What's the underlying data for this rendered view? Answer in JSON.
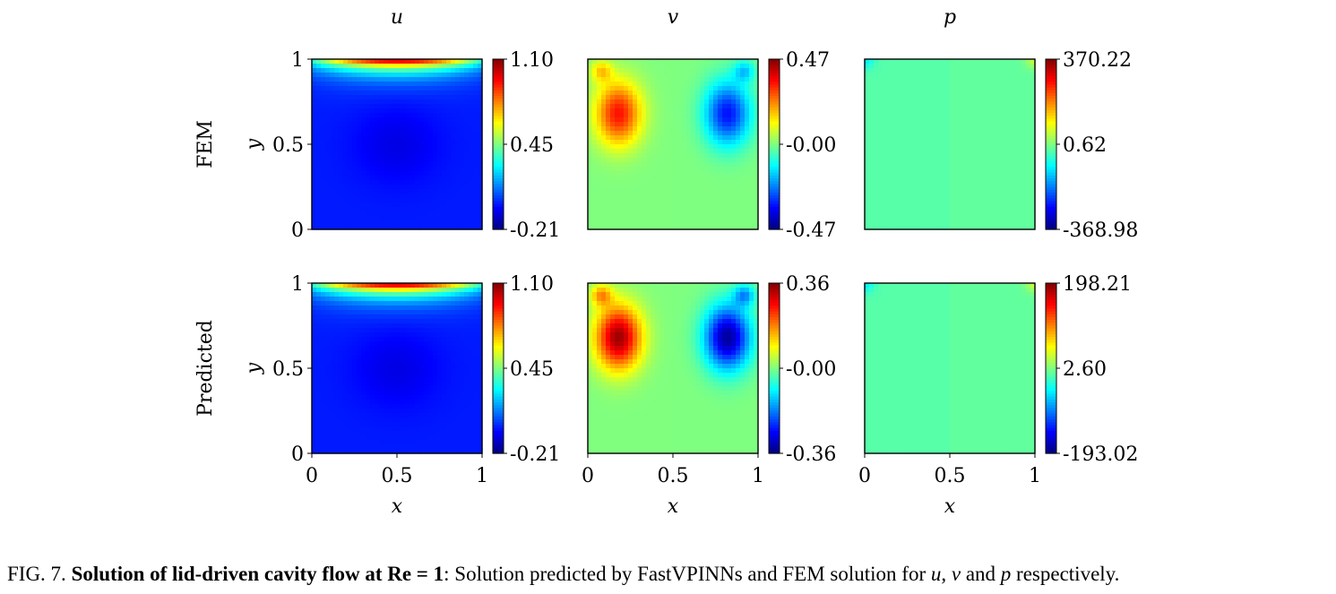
{
  "columns": [
    "u",
    "v",
    "p"
  ],
  "row_labels": [
    "FEM",
    "Predicted"
  ],
  "chart_data": [
    {
      "type": "heatmap",
      "title": "u",
      "row": "FEM",
      "field": "u",
      "xlabel": "",
      "ylabel": "y",
      "xlim": [
        0,
        1
      ],
      "ylim": [
        0,
        1
      ],
      "xticks": [],
      "yticks": [
        "0",
        "0.5",
        "1"
      ],
      "colorbar": {
        "min": -0.21,
        "max": 1.1,
        "ticks": [
          "1.10",
          "0.45",
          "-0.21"
        ]
      }
    },
    {
      "type": "heatmap",
      "title": "v",
      "row": "FEM",
      "field": "v",
      "xlabel": "",
      "ylabel": "",
      "xlim": [
        0,
        1
      ],
      "ylim": [
        0,
        1
      ],
      "xticks": [],
      "yticks": [],
      "colorbar": {
        "min": -0.47,
        "max": 0.47,
        "ticks": [
          "0.47",
          "-0.00",
          "-0.47"
        ]
      }
    },
    {
      "type": "heatmap",
      "title": "p",
      "row": "FEM",
      "field": "p",
      "xlabel": "",
      "ylabel": "",
      "xlim": [
        0,
        1
      ],
      "ylim": [
        0,
        1
      ],
      "xticks": [],
      "yticks": [],
      "colorbar": {
        "min": -368.98,
        "max": 370.22,
        "ticks": [
          "370.22",
          "0.62",
          "-368.98"
        ]
      }
    },
    {
      "type": "heatmap",
      "title": "",
      "row": "Predicted",
      "field": "u",
      "xlabel": "x",
      "ylabel": "y",
      "xlim": [
        0,
        1
      ],
      "ylim": [
        0,
        1
      ],
      "xticks": [
        "0",
        "0.5",
        "1"
      ],
      "yticks": [
        "0",
        "0.5",
        "1"
      ],
      "colorbar": {
        "min": -0.21,
        "max": 1.1,
        "ticks": [
          "1.10",
          "0.45",
          "-0.21"
        ]
      }
    },
    {
      "type": "heatmap",
      "title": "",
      "row": "Predicted",
      "field": "v",
      "xlabel": "x",
      "ylabel": "",
      "xlim": [
        0,
        1
      ],
      "ylim": [
        0,
        1
      ],
      "xticks": [
        "0",
        "0.5",
        "1"
      ],
      "yticks": [],
      "colorbar": {
        "min": -0.36,
        "max": 0.36,
        "ticks": [
          "0.36",
          "-0.00",
          "-0.36"
        ]
      }
    },
    {
      "type": "heatmap",
      "title": "",
      "row": "Predicted",
      "field": "p",
      "xlabel": "x",
      "ylabel": "",
      "xlim": [
        0,
        1
      ],
      "ylim": [
        0,
        1
      ],
      "xticks": [
        "0",
        "0.5",
        "1"
      ],
      "yticks": [],
      "colorbar": {
        "min": -193.02,
        "max": 198.21,
        "ticks": [
          "198.21",
          "2.60",
          "-193.02"
        ]
      }
    }
  ],
  "caption": {
    "prefix": "FIG. 7. ",
    "bold": "Solution of lid-driven cavity flow at Re = 1",
    "text1": ": Solution predicted by FastVPINNs and FEM solution for ",
    "var_u": "u",
    "sep1": ", ",
    "var_v": "v",
    "sep2": " and ",
    "var_p": "p",
    "text2": " respectively."
  }
}
